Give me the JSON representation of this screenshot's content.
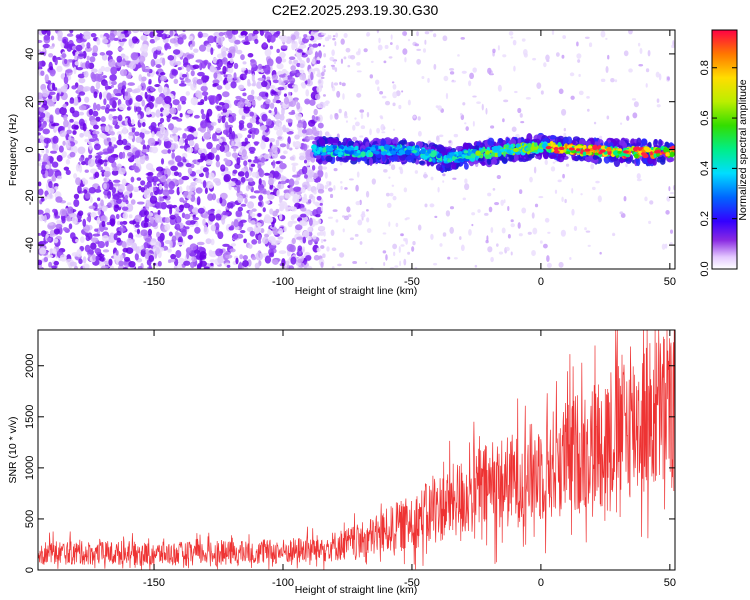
{
  "page_title": "C2E2.2025.293.19.30.G30",
  "chart_data": [
    {
      "type": "heatmap",
      "name": "spectrogram",
      "xlabel": "Height of straight line (km)",
      "ylabel": "Frequency (Hz)",
      "xlim": [
        -195,
        52
      ],
      "ylim": [
        -50,
        50
      ],
      "xticks": [
        -150,
        -100,
        -50,
        0,
        50
      ],
      "yticks": [
        -40,
        -20,
        0,
        20,
        40
      ],
      "xtick_labels": [
        "-150",
        "-100",
        "-50",
        "0",
        "50"
      ],
      "ytick_labels": [
        "-40",
        "-20",
        "0",
        "20",
        "40"
      ],
      "noise_region": {
        "x": [
          -195,
          -85
        ],
        "frequency": [
          -50,
          50
        ]
      },
      "sparse_noise_region": {
        "x": [
          -85,
          52
        ],
        "frequency": [
          -50,
          50
        ]
      },
      "signal_track": [
        {
          "x": -88,
          "f": 0
        },
        {
          "x": -70,
          "f": -1
        },
        {
          "x": -50,
          "f": 0
        },
        {
          "x": -38,
          "f": -4
        },
        {
          "x": -25,
          "f": -2
        },
        {
          "x": -12,
          "f": 0
        },
        {
          "x": 0,
          "f": 1
        },
        {
          "x": 15,
          "f": 0
        },
        {
          "x": 30,
          "f": -1
        },
        {
          "x": 52,
          "f": -1
        }
      ],
      "colorbar": {
        "label": "Normalized spectral amplitude",
        "range": [
          0,
          0.95
        ],
        "ticks": [
          0,
          0.2,
          0.4,
          0.6,
          0.8
        ],
        "tick_labels": [
          "0.0",
          "0.2",
          "0.4",
          "0.6",
          "0.8"
        ]
      }
    },
    {
      "type": "line",
      "name": "snr",
      "xlabel": "Height of straight line (km)",
      "ylabel": "SNR (10 * v/v)",
      "xlim": [
        -195,
        52
      ],
      "ylim": [
        0,
        2350
      ],
      "xticks": [
        -150,
        -100,
        -50,
        0,
        50
      ],
      "yticks": [
        0,
        500,
        1000,
        1500,
        2000
      ],
      "xtick_labels": [
        "-150",
        "-100",
        "-50",
        "0",
        "50"
      ],
      "ytick_labels": [
        "0",
        "500",
        "1000",
        "1500",
        "2000"
      ],
      "color": "#ee3333",
      "trend": [
        {
          "x": -195,
          "y": 170
        },
        {
          "x": -150,
          "y": 160
        },
        {
          "x": -120,
          "y": 165
        },
        {
          "x": -100,
          "y": 180
        },
        {
          "x": -85,
          "y": 210
        },
        {
          "x": -70,
          "y": 280
        },
        {
          "x": -60,
          "y": 380
        },
        {
          "x": -50,
          "y": 470
        },
        {
          "x": -40,
          "y": 600
        },
        {
          "x": -30,
          "y": 720
        },
        {
          "x": -20,
          "y": 820
        },
        {
          "x": -10,
          "y": 880
        },
        {
          "x": 0,
          "y": 980
        },
        {
          "x": 10,
          "y": 1100
        },
        {
          "x": 20,
          "y": 1220
        },
        {
          "x": 30,
          "y": 1380
        },
        {
          "x": 40,
          "y": 1480
        },
        {
          "x": 52,
          "y": 1580
        }
      ],
      "max_value": 2350
    }
  ]
}
